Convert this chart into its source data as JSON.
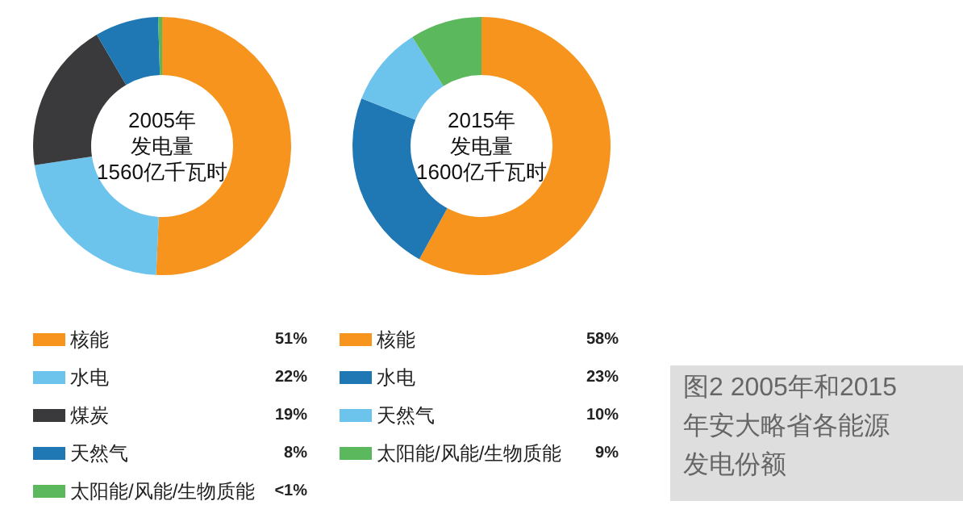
{
  "chart_data": [
    {
      "type": "donut",
      "title": "2005年发电量1560亿千瓦时",
      "categories": [
        "核能",
        "水电",
        "煤炭",
        "天然气",
        "太阳能/风能/生物质能"
      ],
      "values": [
        51,
        22,
        19,
        8,
        0.5
      ],
      "colors": [
        "#f7941d",
        "#6cc3ec",
        "#3a3a3c",
        "#1f78b4",
        "#5cb85c"
      ],
      "value_labels": [
        "51%",
        "22%",
        "19%",
        "8%",
        "<1%"
      ],
      "legend": "bottom"
    },
    {
      "type": "donut",
      "title": "2015年发电量1600亿千瓦时",
      "categories": [
        "核能",
        "水电",
        "天然气",
        "太阳能/风能/生物质能"
      ],
      "values": [
        58,
        23,
        10,
        9
      ],
      "colors": [
        "#f7941d",
        "#1f78b4",
        "#6cc3ec",
        "#5cb85c"
      ],
      "value_labels": [
        "58%",
        "23%",
        "10%",
        "9%"
      ],
      "legend": "bottom",
      "annotations": [
        "图2 2005年和2015年安大略省各能源发电份额"
      ]
    }
  ]
}
